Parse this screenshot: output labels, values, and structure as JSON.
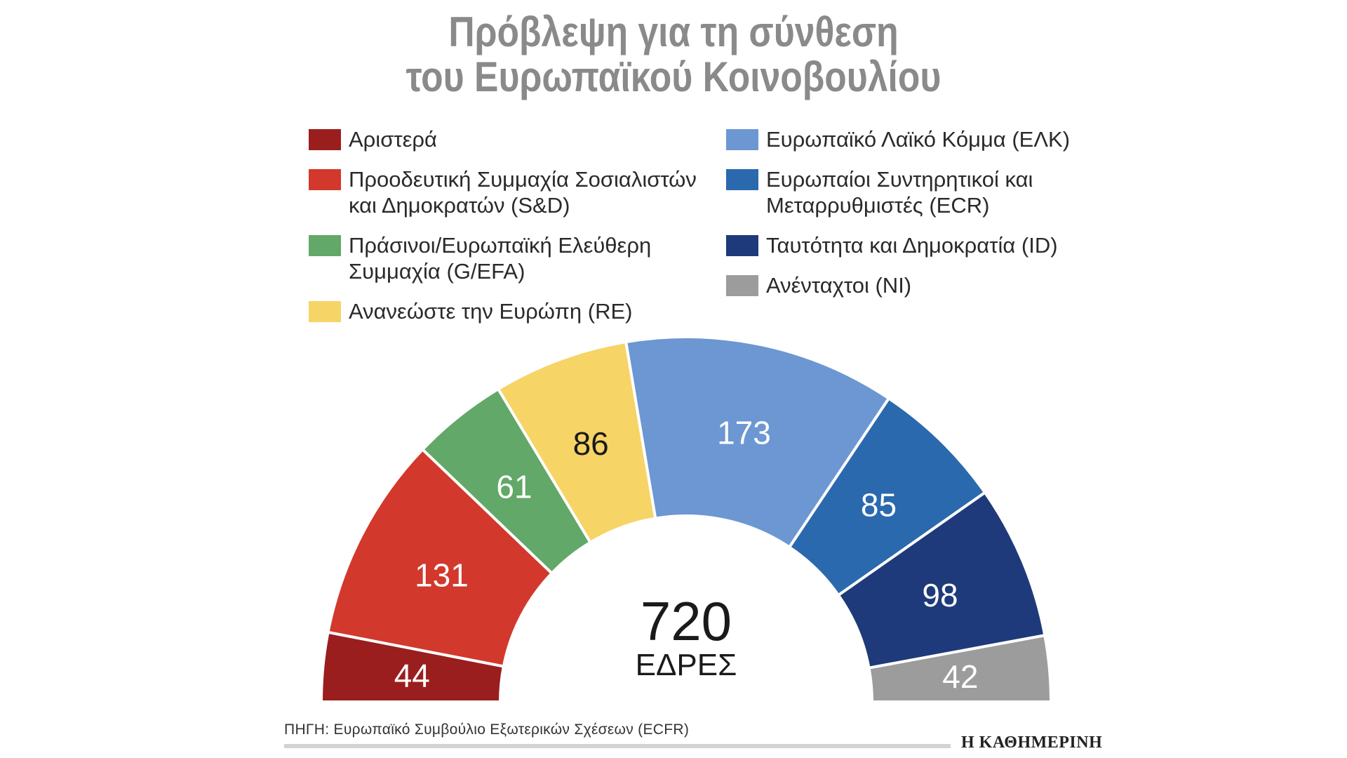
{
  "title_line1": "Πρόβλεψη για τη σύνθεση",
  "title_line2": "του Ευρωπαϊκού Κοινοβουλίου",
  "legend_left": [
    {
      "label": "Αριστερά",
      "color": "#9a1e1e"
    },
    {
      "label": "Προοδευτική Συμμαχία Σοσιαλιστών\nκαι Δημοκρατών (S&D)",
      "color": "#d2382c"
    },
    {
      "label": "Πράσινοι/Ευρωπαϊκή Ελεύθερη\nΣυμμαχία (G/EFA)",
      "color": "#62a868"
    },
    {
      "label": "Ανανεώστε την Ευρώπη (RE)",
      "color": "#f6d466"
    }
  ],
  "legend_right": [
    {
      "label": "Ευρωπαϊκό Λαϊκό Κόμμα (ΕΛΚ)",
      "color": "#6c97d2"
    },
    {
      "label": "Ευρωπαίοι Συντηρητικοί και\nΜεταρρυθμιστές (ECR)",
      "color": "#2b69ae"
    },
    {
      "label": "Ταυτότητα και Δημοκρατία (ID)",
      "color": "#1f3a7a"
    },
    {
      "label": "Ανένταχτοι (NI)",
      "color": "#9c9c9c"
    }
  ],
  "chart_data": {
    "type": "pie",
    "subtype": "hemicycle",
    "categories": [
      "Αριστερά",
      "S&D",
      "G/EFA",
      "RE",
      "ΕΛΚ",
      "ECR",
      "ID",
      "NI"
    ],
    "values": [
      44,
      131,
      61,
      86,
      173,
      85,
      98,
      42
    ],
    "colors": [
      "#9a1e1e",
      "#d2382c",
      "#62a868",
      "#f6d466",
      "#6c97d2",
      "#2b69ae",
      "#1f3a7a",
      "#9c9c9c"
    ],
    "label_colors": [
      "#ffffff",
      "#ffffff",
      "#ffffff",
      "#1a1a1a",
      "#ffffff",
      "#ffffff",
      "#ffffff",
      "#ffffff"
    ],
    "total": "720",
    "total_label": "ΕΔΡΕΣ"
  },
  "source": "ΠΗΓΗ:  Ευρωπαϊκό Συμβούλιο Εξωτερικών Σχέσεων (ECFR)",
  "brand": "Η ΚΑΘΗΜΕΡΙΝΗ"
}
